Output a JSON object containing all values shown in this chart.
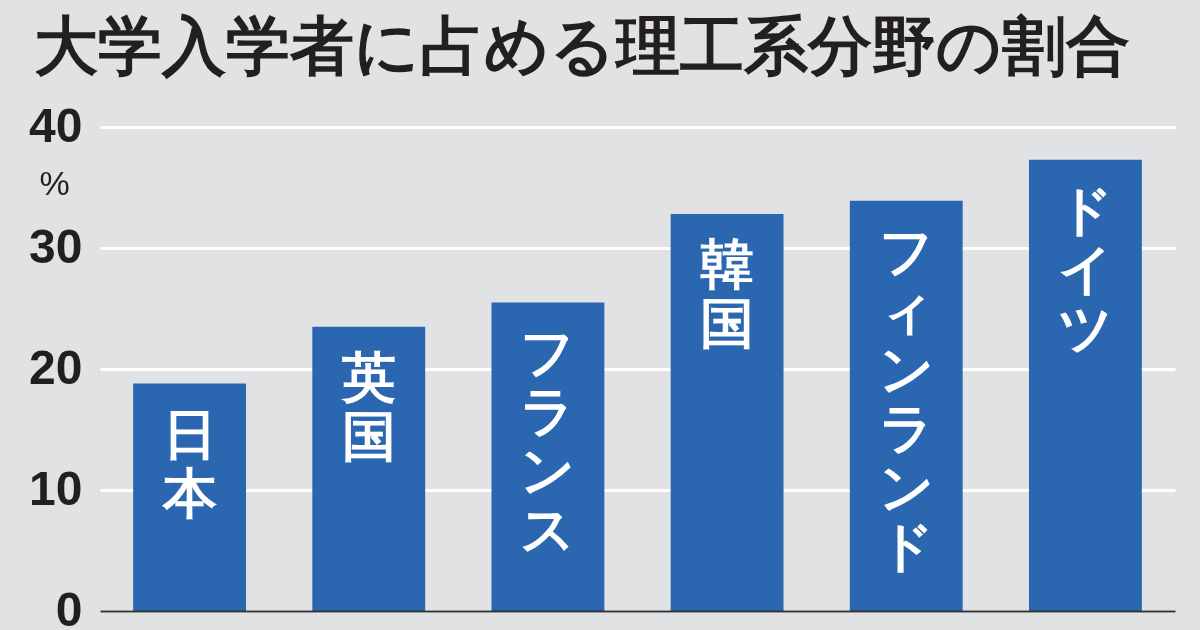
{
  "chart_data": {
    "type": "bar",
    "title": "大学入学者に占める理工系分野の割合",
    "ylabel": "%",
    "categories": [
      "日本",
      "英国",
      "フランス",
      "韓国",
      "フィンランド",
      "ドイツ"
    ],
    "values": [
      18.8,
      23.5,
      25.5,
      32.8,
      33.9,
      37.3
    ],
    "color": "#2b67b0",
    "ylim": [
      0,
      40
    ],
    "yticks": [
      0,
      10,
      20,
      30,
      40
    ],
    "grid": "y",
    "tick_labels": "y"
  }
}
